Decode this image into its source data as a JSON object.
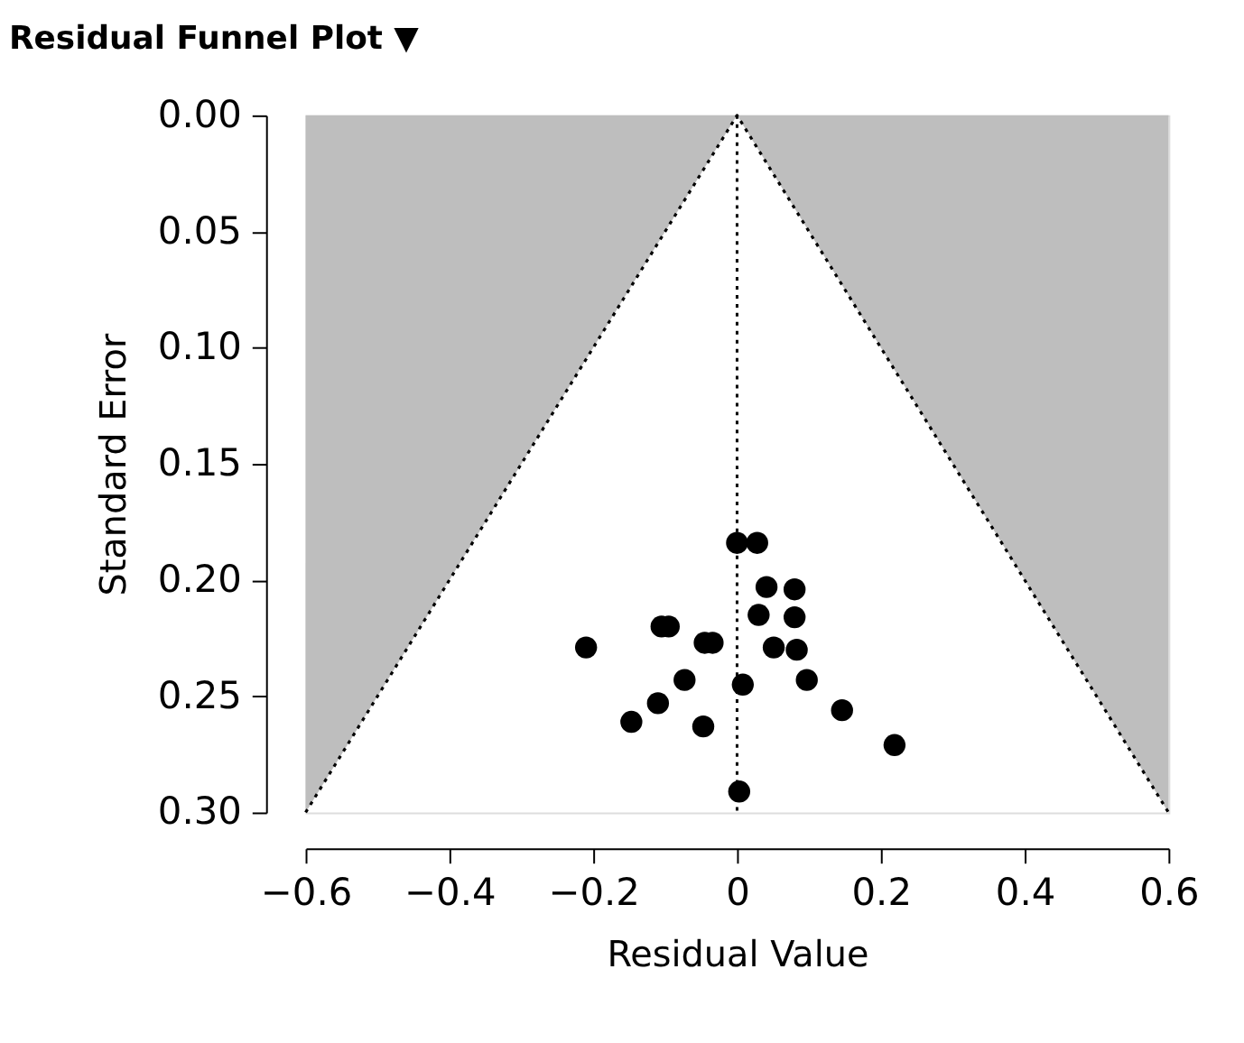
{
  "chart_data": {
    "type": "scatter",
    "title": "Residual Funnel Plot ▼",
    "xlabel": "Residual Value",
    "ylabel": "Standard Error",
    "xlim": [
      -0.6,
      0.6
    ],
    "xticks": [
      -0.6,
      -0.4,
      -0.2,
      {
        "value": 0,
        "label": "0"
      },
      0.2,
      0.4,
      0.6
    ],
    "ylim": [
      0.3,
      0.0
    ],
    "yticks": [
      {
        "value": 0,
        "label": "0.00"
      },
      {
        "value": 0.05,
        "label": "0.05"
      },
      {
        "value": 0.1,
        "label": "0.10"
      },
      {
        "value": 0.15,
        "label": "0.15"
      },
      {
        "value": 0.2,
        "label": "0.20"
      },
      {
        "value": 0.25,
        "label": "0.25"
      },
      {
        "value": 0.3,
        "label": "0.30"
      }
    ],
    "grid": false,
    "series": [
      {
        "type": "area",
        "color": "#bebebe",
        "x": [
          -0.6,
          0
        ],
        "values": [
          0.3,
          0
        ]
      },
      {
        "type": "area",
        "color": "#bebebe",
        "x": [
          0,
          0.6
        ],
        "values": [
          0,
          0.3
        ]
      },
      {
        "type": "line",
        "color": "#000000",
        "line_style": "dotted",
        "marker": "none",
        "x": [
          -0.6,
          0,
          0.6
        ],
        "values": [
          0.3,
          0,
          0.3
        ]
      },
      {
        "color": "#000000",
        "marker": "circle",
        "x": [
          0.0,
          0.028,
          0.041,
          0.08,
          0.03,
          0.08,
          -0.105,
          -0.095,
          -0.045,
          -0.034,
          -0.21,
          0.051,
          0.083,
          -0.073,
          0.008,
          0.097,
          -0.11,
          -0.147,
          -0.047,
          0.146,
          0.219,
          0.003
        ],
        "values": [
          0.184,
          0.184,
          0.203,
          0.204,
          0.215,
          0.216,
          0.22,
          0.22,
          0.227,
          0.227,
          0.229,
          0.229,
          0.23,
          0.243,
          0.245,
          0.243,
          0.253,
          0.261,
          0.263,
          0.256,
          0.271,
          0.291
        ]
      }
    ],
    "ref_lines": [
      {
        "axis": "x",
        "value": 0,
        "color": "#000000",
        "line_style": "dotted"
      }
    ]
  }
}
